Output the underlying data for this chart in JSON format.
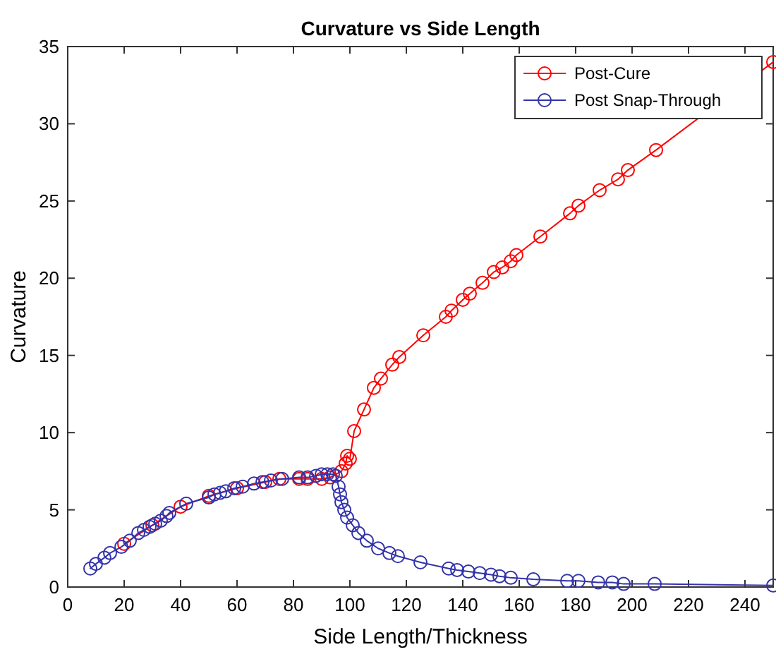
{
  "chart_data": {
    "type": "line",
    "title": "Curvature vs Side Length",
    "xlabel": "Side Length/Thickness",
    "ylabel": "Curvature",
    "xlim": [
      0,
      250
    ],
    "ylim": [
      0,
      35
    ],
    "xticks": [
      0,
      20,
      40,
      60,
      80,
      100,
      120,
      140,
      160,
      180,
      200,
      220,
      240
    ],
    "yticks": [
      0,
      5,
      10,
      15,
      20,
      25,
      30,
      35
    ],
    "grid": false,
    "legend": "top right",
    "marker": "circle",
    "line_style": "solid",
    "series": [
      {
        "name": "Post-Cure",
        "color": "#ff0000",
        "x": [
          20,
          30,
          40,
          50,
          60,
          70,
          75,
          82,
          85,
          90,
          93,
          97,
          98.5,
          99,
          100,
          101.5,
          105,
          108.5,
          111,
          115,
          117.5,
          126,
          134,
          136,
          140,
          142.5,
          147,
          151,
          154,
          157,
          159,
          167.5,
          178,
          181,
          188.5,
          195,
          198.5,
          208.5,
          250
        ],
        "values": [
          2.8,
          4,
          5.2,
          5.9,
          6.4,
          6.8,
          7,
          7,
          7,
          7,
          7.1,
          7.5,
          8,
          8.5,
          8.3,
          10.1,
          11.5,
          12.9,
          13.5,
          14.4,
          14.9,
          16.3,
          17.5,
          17.9,
          18.6,
          19,
          19.7,
          20.4,
          20.7,
          21.1,
          21.5,
          22.7,
          24.2,
          24.7,
          25.7,
          26.4,
          27,
          28.3,
          34
        ]
      },
      {
        "name": "Post Snap-Through",
        "color": "#3333aa",
        "x": [
          8,
          10,
          13,
          15,
          19,
          22,
          25,
          27,
          29,
          31,
          33,
          35,
          36,
          42,
          50,
          52,
          54,
          56,
          59,
          62,
          66,
          69,
          72,
          76,
          82,
          85,
          88,
          90,
          92,
          94,
          95,
          96,
          96.5,
          97,
          98,
          99,
          101,
          103,
          106,
          110,
          114,
          117,
          125,
          135,
          138,
          142,
          146,
          150,
          153,
          157,
          165,
          177,
          181,
          188,
          193,
          197,
          208,
          250
        ],
        "values": [
          1.2,
          1.5,
          1.9,
          2.2,
          2.6,
          3,
          3.5,
          3.7,
          3.9,
          4.1,
          4.3,
          4.6,
          4.8,
          5.4,
          5.8,
          6,
          6.1,
          6.2,
          6.4,
          6.5,
          6.7,
          6.8,
          6.9,
          7,
          7.1,
          7.1,
          7.2,
          7.3,
          7.3,
          7.3,
          7.2,
          6.5,
          6,
          5.5,
          5,
          4.5,
          4,
          3.5,
          3,
          2.5,
          2.2,
          2,
          1.6,
          1.2,
          1.1,
          1,
          0.9,
          0.8,
          0.7,
          0.6,
          0.5,
          0.4,
          0.4,
          0.3,
          0.3,
          0.2,
          0.2,
          0.1
        ]
      }
    ]
  }
}
